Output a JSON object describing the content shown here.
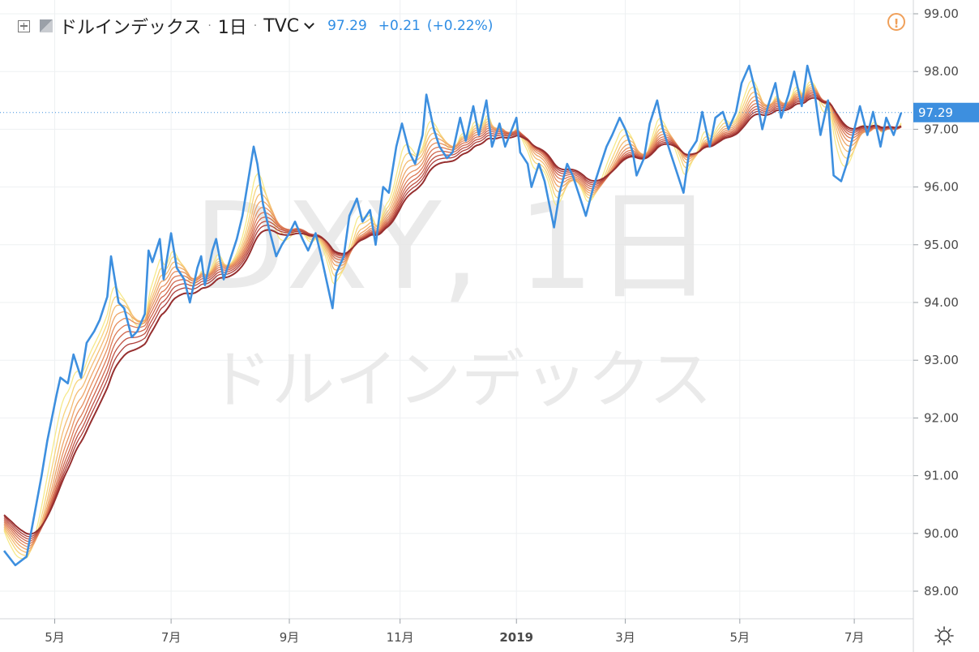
{
  "legend": {
    "symbol_name": "ドルインデックス",
    "interval": "1日",
    "exchange": "TVC",
    "last": "97.29",
    "change": "+0.21",
    "change_pct": "(+0.22%)"
  },
  "watermark": {
    "line1": "DXY, 1日",
    "line2": "ドルインデックス"
  },
  "price_label": "97.29",
  "colors": {
    "price_line": "#3d8fdf",
    "grid": "#eef0f2",
    "last_price": "#3d8fdf",
    "ribbon": [
      "#f6e98a",
      "#f7d47c",
      "#f4bb72",
      "#eea568",
      "#e68f5f",
      "#dc7955",
      "#cf654c",
      "#c05244",
      "#ae3f3a",
      "#962f2f"
    ]
  },
  "chart_data": {
    "type": "line",
    "title": "DXY, 1日",
    "ylim": [
      88.6,
      99.2
    ],
    "yticks": [
      "89.00",
      "90.00",
      "91.00",
      "92.00",
      "93.00",
      "94.00",
      "95.00",
      "96.00",
      "97.00",
      "98.00",
      "99.00"
    ],
    "xlim": [
      "2018-04-04",
      "2019-07-26"
    ],
    "xticks": [
      {
        "label": "5月",
        "date": "2018-05-01"
      },
      {
        "label": "7月",
        "date": "2018-07-02"
      },
      {
        "label": "9月",
        "date": "2018-09-03"
      },
      {
        "label": "11月",
        "date": "2018-11-01"
      },
      {
        "label": "2019",
        "date": "2019-01-02"
      },
      {
        "label": "3月",
        "date": "2019-03-01"
      },
      {
        "label": "5月",
        "date": "2019-05-01"
      },
      {
        "label": "7月",
        "date": "2019-07-01"
      }
    ],
    "last_value": 97.29,
    "series": [
      {
        "values": [
          [
            "2018-04-04",
            89.7
          ],
          [
            "2018-04-10",
            89.45
          ],
          [
            "2018-04-16",
            89.6
          ],
          [
            "2018-04-20",
            90.3
          ],
          [
            "2018-04-24",
            91.0
          ],
          [
            "2018-04-27",
            91.6
          ],
          [
            "2018-05-02",
            92.4
          ],
          [
            "2018-05-04",
            92.7
          ],
          [
            "2018-05-08",
            92.6
          ],
          [
            "2018-05-11",
            93.1
          ],
          [
            "2018-05-15",
            92.7
          ],
          [
            "2018-05-18",
            93.3
          ],
          [
            "2018-05-22",
            93.5
          ],
          [
            "2018-05-25",
            93.7
          ],
          [
            "2018-05-29",
            94.1
          ],
          [
            "2018-05-31",
            94.8
          ],
          [
            "2018-06-04",
            94.0
          ],
          [
            "2018-06-07",
            93.9
          ],
          [
            "2018-06-11",
            93.4
          ],
          [
            "2018-06-14",
            93.5
          ],
          [
            "2018-06-18",
            93.8
          ],
          [
            "2018-06-20",
            94.9
          ],
          [
            "2018-06-22",
            94.7
          ],
          [
            "2018-06-26",
            95.1
          ],
          [
            "2018-06-28",
            94.4
          ],
          [
            "2018-07-02",
            95.2
          ],
          [
            "2018-07-05",
            94.6
          ],
          [
            "2018-07-09",
            94.4
          ],
          [
            "2018-07-12",
            94.0
          ],
          [
            "2018-07-16",
            94.6
          ],
          [
            "2018-07-18",
            94.8
          ],
          [
            "2018-07-20",
            94.3
          ],
          [
            "2018-07-24",
            94.9
          ],
          [
            "2018-07-26",
            95.1
          ],
          [
            "2018-07-30",
            94.4
          ],
          [
            "2018-08-02",
            94.7
          ],
          [
            "2018-08-06",
            95.1
          ],
          [
            "2018-08-09",
            95.5
          ],
          [
            "2018-08-13",
            96.3
          ],
          [
            "2018-08-15",
            96.7
          ],
          [
            "2018-08-17",
            96.4
          ],
          [
            "2018-08-20",
            95.7
          ],
          [
            "2018-08-23",
            95.3
          ],
          [
            "2018-08-27",
            94.8
          ],
          [
            "2018-08-30",
            95.0
          ],
          [
            "2018-09-03",
            95.2
          ],
          [
            "2018-09-06",
            95.4
          ],
          [
            "2018-09-10",
            95.1
          ],
          [
            "2018-09-13",
            94.9
          ],
          [
            "2018-09-17",
            95.2
          ],
          [
            "2018-09-20",
            94.8
          ],
          [
            "2018-09-24",
            94.2
          ],
          [
            "2018-09-26",
            93.9
          ],
          [
            "2018-09-28",
            94.5
          ],
          [
            "2018-10-02",
            94.8
          ],
          [
            "2018-10-05",
            95.5
          ],
          [
            "2018-10-09",
            95.8
          ],
          [
            "2018-10-12",
            95.4
          ],
          [
            "2018-10-16",
            95.6
          ],
          [
            "2018-10-19",
            95.0
          ],
          [
            "2018-10-23",
            96.0
          ],
          [
            "2018-10-26",
            95.9
          ],
          [
            "2018-10-30",
            96.7
          ],
          [
            "2018-11-02",
            97.1
          ],
          [
            "2018-11-06",
            96.6
          ],
          [
            "2018-11-09",
            96.4
          ],
          [
            "2018-11-13",
            96.9
          ],
          [
            "2018-11-15",
            97.6
          ],
          [
            "2018-11-19",
            97.0
          ],
          [
            "2018-11-22",
            96.7
          ],
          [
            "2018-11-26",
            96.5
          ],
          [
            "2018-11-29",
            96.6
          ],
          [
            "2018-12-03",
            97.2
          ],
          [
            "2018-12-06",
            96.8
          ],
          [
            "2018-12-10",
            97.4
          ],
          [
            "2018-12-13",
            96.9
          ],
          [
            "2018-12-17",
            97.5
          ],
          [
            "2018-12-20",
            96.7
          ],
          [
            "2018-12-24",
            97.1
          ],
          [
            "2018-12-27",
            96.7
          ],
          [
            "2019-01-02",
            97.2
          ],
          [
            "2019-01-04",
            96.6
          ],
          [
            "2019-01-08",
            96.4
          ],
          [
            "2019-01-10",
            96.0
          ],
          [
            "2019-01-14",
            96.4
          ],
          [
            "2019-01-17",
            96.1
          ],
          [
            "2019-01-22",
            95.3
          ],
          [
            "2019-01-25",
            95.9
          ],
          [
            "2019-01-29",
            96.4
          ],
          [
            "2019-02-01",
            96.2
          ],
          [
            "2019-02-05",
            95.8
          ],
          [
            "2019-02-08",
            95.5
          ],
          [
            "2019-02-12",
            96.0
          ],
          [
            "2019-02-15",
            96.3
          ],
          [
            "2019-02-19",
            96.7
          ],
          [
            "2019-02-22",
            96.9
          ],
          [
            "2019-02-26",
            97.2
          ],
          [
            "2019-03-01",
            97.0
          ],
          [
            "2019-03-05",
            96.6
          ],
          [
            "2019-03-07",
            96.2
          ],
          [
            "2019-03-11",
            96.5
          ],
          [
            "2019-03-14",
            97.1
          ],
          [
            "2019-03-18",
            97.5
          ],
          [
            "2019-03-21",
            97.0
          ],
          [
            "2019-03-25",
            96.6
          ],
          [
            "2019-03-28",
            96.3
          ],
          [
            "2019-04-01",
            95.9
          ],
          [
            "2019-04-04",
            96.6
          ],
          [
            "2019-04-08",
            96.8
          ],
          [
            "2019-04-11",
            97.3
          ],
          [
            "2019-04-15",
            96.7
          ],
          [
            "2019-04-18",
            97.2
          ],
          [
            "2019-04-22",
            97.3
          ],
          [
            "2019-04-25",
            97.0
          ],
          [
            "2019-04-29",
            97.3
          ],
          [
            "2019-05-02",
            97.8
          ],
          [
            "2019-05-06",
            98.1
          ],
          [
            "2019-05-09",
            97.7
          ],
          [
            "2019-05-13",
            97.0
          ],
          [
            "2019-05-16",
            97.4
          ],
          [
            "2019-05-20",
            97.8
          ],
          [
            "2019-05-23",
            97.2
          ],
          [
            "2019-05-27",
            97.6
          ],
          [
            "2019-05-30",
            98.0
          ],
          [
            "2019-06-03",
            97.4
          ],
          [
            "2019-06-06",
            98.1
          ],
          [
            "2019-06-10",
            97.6
          ],
          [
            "2019-06-13",
            96.9
          ],
          [
            "2019-06-17",
            97.5
          ],
          [
            "2019-06-20",
            96.2
          ],
          [
            "2019-06-24",
            96.1
          ],
          [
            "2019-06-27",
            96.4
          ],
          [
            "2019-07-01",
            97.0
          ],
          [
            "2019-07-04",
            97.4
          ],
          [
            "2019-07-08",
            96.9
          ],
          [
            "2019-07-11",
            97.3
          ],
          [
            "2019-07-15",
            96.7
          ],
          [
            "2019-07-18",
            97.2
          ],
          [
            "2019-07-22",
            96.9
          ],
          [
            "2019-07-26",
            97.29
          ]
        ]
      }
    ]
  }
}
